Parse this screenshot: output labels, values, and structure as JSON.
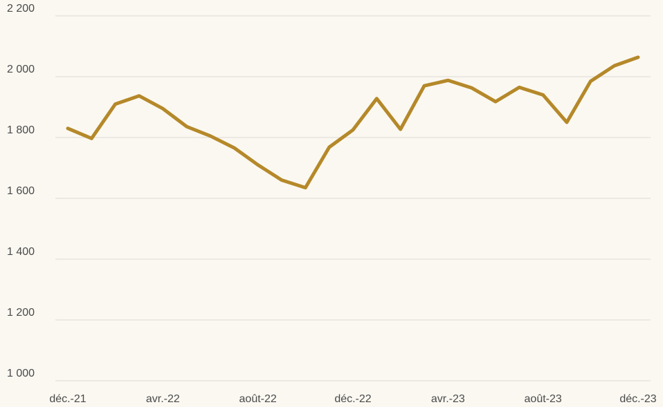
{
  "chart_data": {
    "type": "line",
    "categories": [
      "déc.-21",
      null,
      null,
      null,
      "avr.-22",
      null,
      null,
      null,
      "août-22",
      null,
      null,
      null,
      "déc.-22",
      null,
      null,
      null,
      "avr.-23",
      null,
      null,
      null,
      "août-23",
      null,
      null,
      null,
      "déc.-23"
    ],
    "values": [
      1830,
      1797,
      1910,
      1937,
      1895,
      1836,
      1805,
      1766,
      1710,
      1660,
      1635,
      1768,
      1825,
      1928,
      1827,
      1970,
      1988,
      1963,
      1918,
      1965,
      1940,
      1850,
      1985,
      2036,
      2064
    ],
    "color": "#b5892a",
    "ylim": [
      1000,
      2200
    ],
    "yticks": [
      {
        "value": 1000,
        "label": "1 000"
      },
      {
        "value": 1200,
        "label": "1 200"
      },
      {
        "value": 1400,
        "label": "1 400"
      },
      {
        "value": 1600,
        "label": "1 600"
      },
      {
        "value": 1800,
        "label": "1 800"
      },
      {
        "value": 2000,
        "label": "2 000"
      },
      {
        "value": 2200,
        "label": "2 200"
      }
    ],
    "grid": true
  }
}
